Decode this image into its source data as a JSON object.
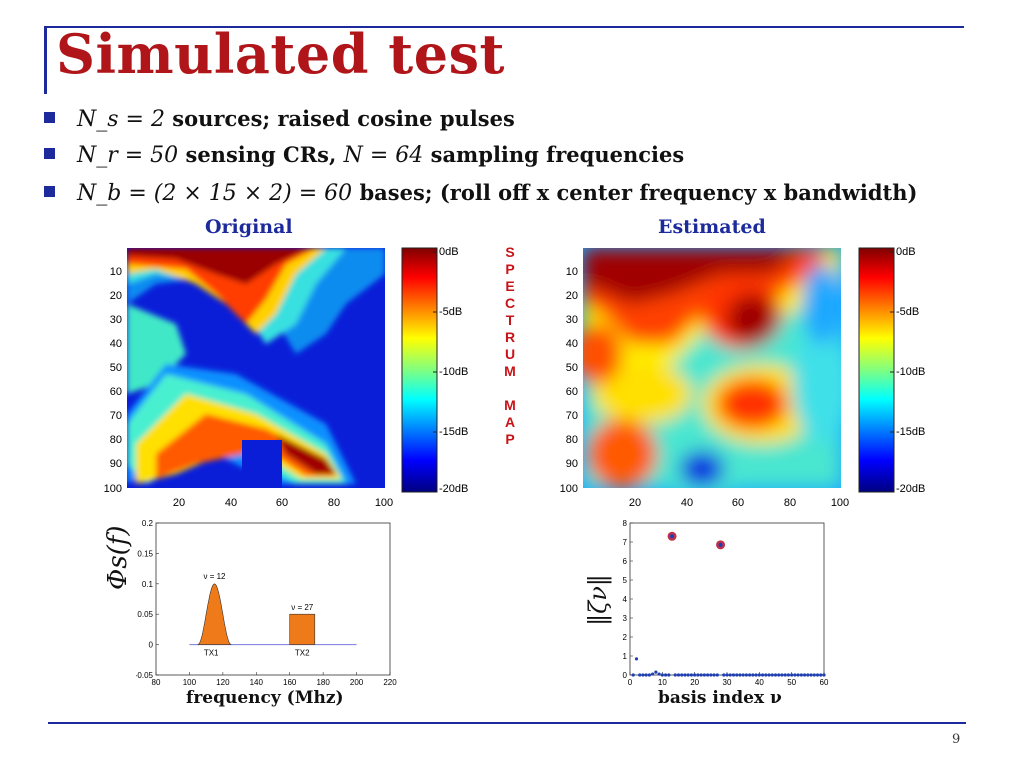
{
  "slide": {
    "title": "Simulated test",
    "page_number": "9",
    "bullets": [
      {
        "math": "N_s = 2",
        "text": "sources; raised cosine pulses"
      },
      {
        "math": "N_r = 50",
        "text": "sensing CRs,",
        "math2": "N = 64",
        "text2": "sampling frequencies"
      },
      {
        "math": "N_b = (2 × 15 × 2) = 60",
        "text": "bases; (roll off x center frequency x bandwidth)"
      }
    ],
    "vertical_label": [
      "S",
      "P",
      "E",
      "C",
      "T",
      "R",
      "U",
      "M",
      "",
      "M",
      "A",
      "P"
    ]
  },
  "colors": {
    "title": "#b0151a",
    "accent": "#1c2a9c",
    "vertical_label": "#c81418",
    "bar_fill": "#ee7a1a",
    "scatter": "#1f3fb0",
    "highlight": "#c0304c"
  },
  "chart_data": [
    {
      "type": "heatmap",
      "title": "Original",
      "x_ticks": [
        "20",
        "40",
        "60",
        "80",
        "100"
      ],
      "y_ticks": [
        "10",
        "20",
        "30",
        "40",
        "50",
        "60",
        "70",
        "80",
        "90",
        "100"
      ],
      "xlim": [
        1,
        100
      ],
      "ylim": [
        1,
        100
      ],
      "colorbar": {
        "ticks": [
          "0dB",
          "-5dB",
          "-10dB",
          "-15dB",
          "-20dB"
        ],
        "range": [
          -20,
          0
        ],
        "colormap": "jet"
      }
    },
    {
      "type": "heatmap",
      "title": "Estimated",
      "x_ticks": [
        "20",
        "40",
        "60",
        "80",
        "100"
      ],
      "y_ticks": [
        "10",
        "20",
        "30",
        "40",
        "50",
        "60",
        "70",
        "80",
        "90",
        "100"
      ],
      "xlim": [
        1,
        100
      ],
      "ylim": [
        1,
        100
      ],
      "colorbar": {
        "ticks": [
          "0dB",
          "-5dB",
          "-10dB",
          "-15dB",
          "-20dB"
        ],
        "range": [
          -20,
          0
        ],
        "colormap": "jet"
      }
    },
    {
      "type": "area",
      "ylabel": "Φs(f)",
      "xlabel": "frequency (Mhz)",
      "xlim": [
        80,
        220
      ],
      "ylim": [
        -0.05,
        0.2
      ],
      "x_ticks": [
        "80",
        "100",
        "120",
        "140",
        "160",
        "180",
        "200",
        "220"
      ],
      "y_ticks": [
        "-0.05",
        "0",
        "0.05",
        "0.1",
        "0.15",
        "0.2"
      ],
      "series": [
        {
          "name": "TX1",
          "shape": "raised cosine",
          "center": 115,
          "half_width": 10,
          "peak": 0.1,
          "annotation": "ν = 12"
        },
        {
          "name": "TX2",
          "shape": "rectangular",
          "x_start": 160,
          "x_end": 175,
          "value": 0.05,
          "annotation": "ν = 27"
        }
      ]
    },
    {
      "type": "scatter",
      "ylabel": "‖ζν‖",
      "xlabel": "basis index ν",
      "xlim": [
        0,
        60
      ],
      "ylim": [
        0,
        8
      ],
      "x_ticks": [
        "0",
        "10",
        "20",
        "30",
        "40",
        "50",
        "60"
      ],
      "y_ticks": [
        "0",
        "1",
        "2",
        "3",
        "4",
        "5",
        "6",
        "7",
        "8"
      ],
      "points": [
        [
          1,
          0
        ],
        [
          2,
          0.85
        ],
        [
          3,
          0
        ],
        [
          4,
          0
        ],
        [
          5,
          0
        ],
        [
          6,
          0
        ],
        [
          7,
          0.05
        ],
        [
          8,
          0.15
        ],
        [
          9,
          0.05
        ],
        [
          10,
          0
        ],
        [
          11,
          0
        ],
        [
          12,
          0
        ],
        [
          13,
          7.3
        ],
        [
          14,
          0
        ],
        [
          15,
          0
        ],
        [
          16,
          0
        ],
        [
          17,
          0
        ],
        [
          18,
          0
        ],
        [
          19,
          0
        ],
        [
          20,
          0
        ],
        [
          21,
          0
        ],
        [
          22,
          0
        ],
        [
          23,
          0
        ],
        [
          24,
          0
        ],
        [
          25,
          0
        ],
        [
          26,
          0
        ],
        [
          27,
          0
        ],
        [
          28,
          6.85
        ],
        [
          29,
          0
        ],
        [
          30,
          0
        ],
        [
          31,
          0
        ],
        [
          32,
          0
        ],
        [
          33,
          0
        ],
        [
          34,
          0
        ],
        [
          35,
          0
        ],
        [
          36,
          0
        ],
        [
          37,
          0
        ],
        [
          38,
          0
        ],
        [
          39,
          0
        ],
        [
          40,
          0
        ],
        [
          41,
          0
        ],
        [
          42,
          0
        ],
        [
          43,
          0
        ],
        [
          44,
          0
        ],
        [
          45,
          0
        ],
        [
          46,
          0
        ],
        [
          47,
          0
        ],
        [
          48,
          0
        ],
        [
          49,
          0
        ],
        [
          50,
          0
        ],
        [
          51,
          0
        ],
        [
          52,
          0
        ],
        [
          53,
          0
        ],
        [
          54,
          0
        ],
        [
          55,
          0
        ],
        [
          56,
          0
        ],
        [
          57,
          0
        ],
        [
          58,
          0
        ],
        [
          59,
          0
        ],
        [
          60,
          0
        ]
      ],
      "highlighted_indices": [
        13,
        28
      ]
    }
  ]
}
